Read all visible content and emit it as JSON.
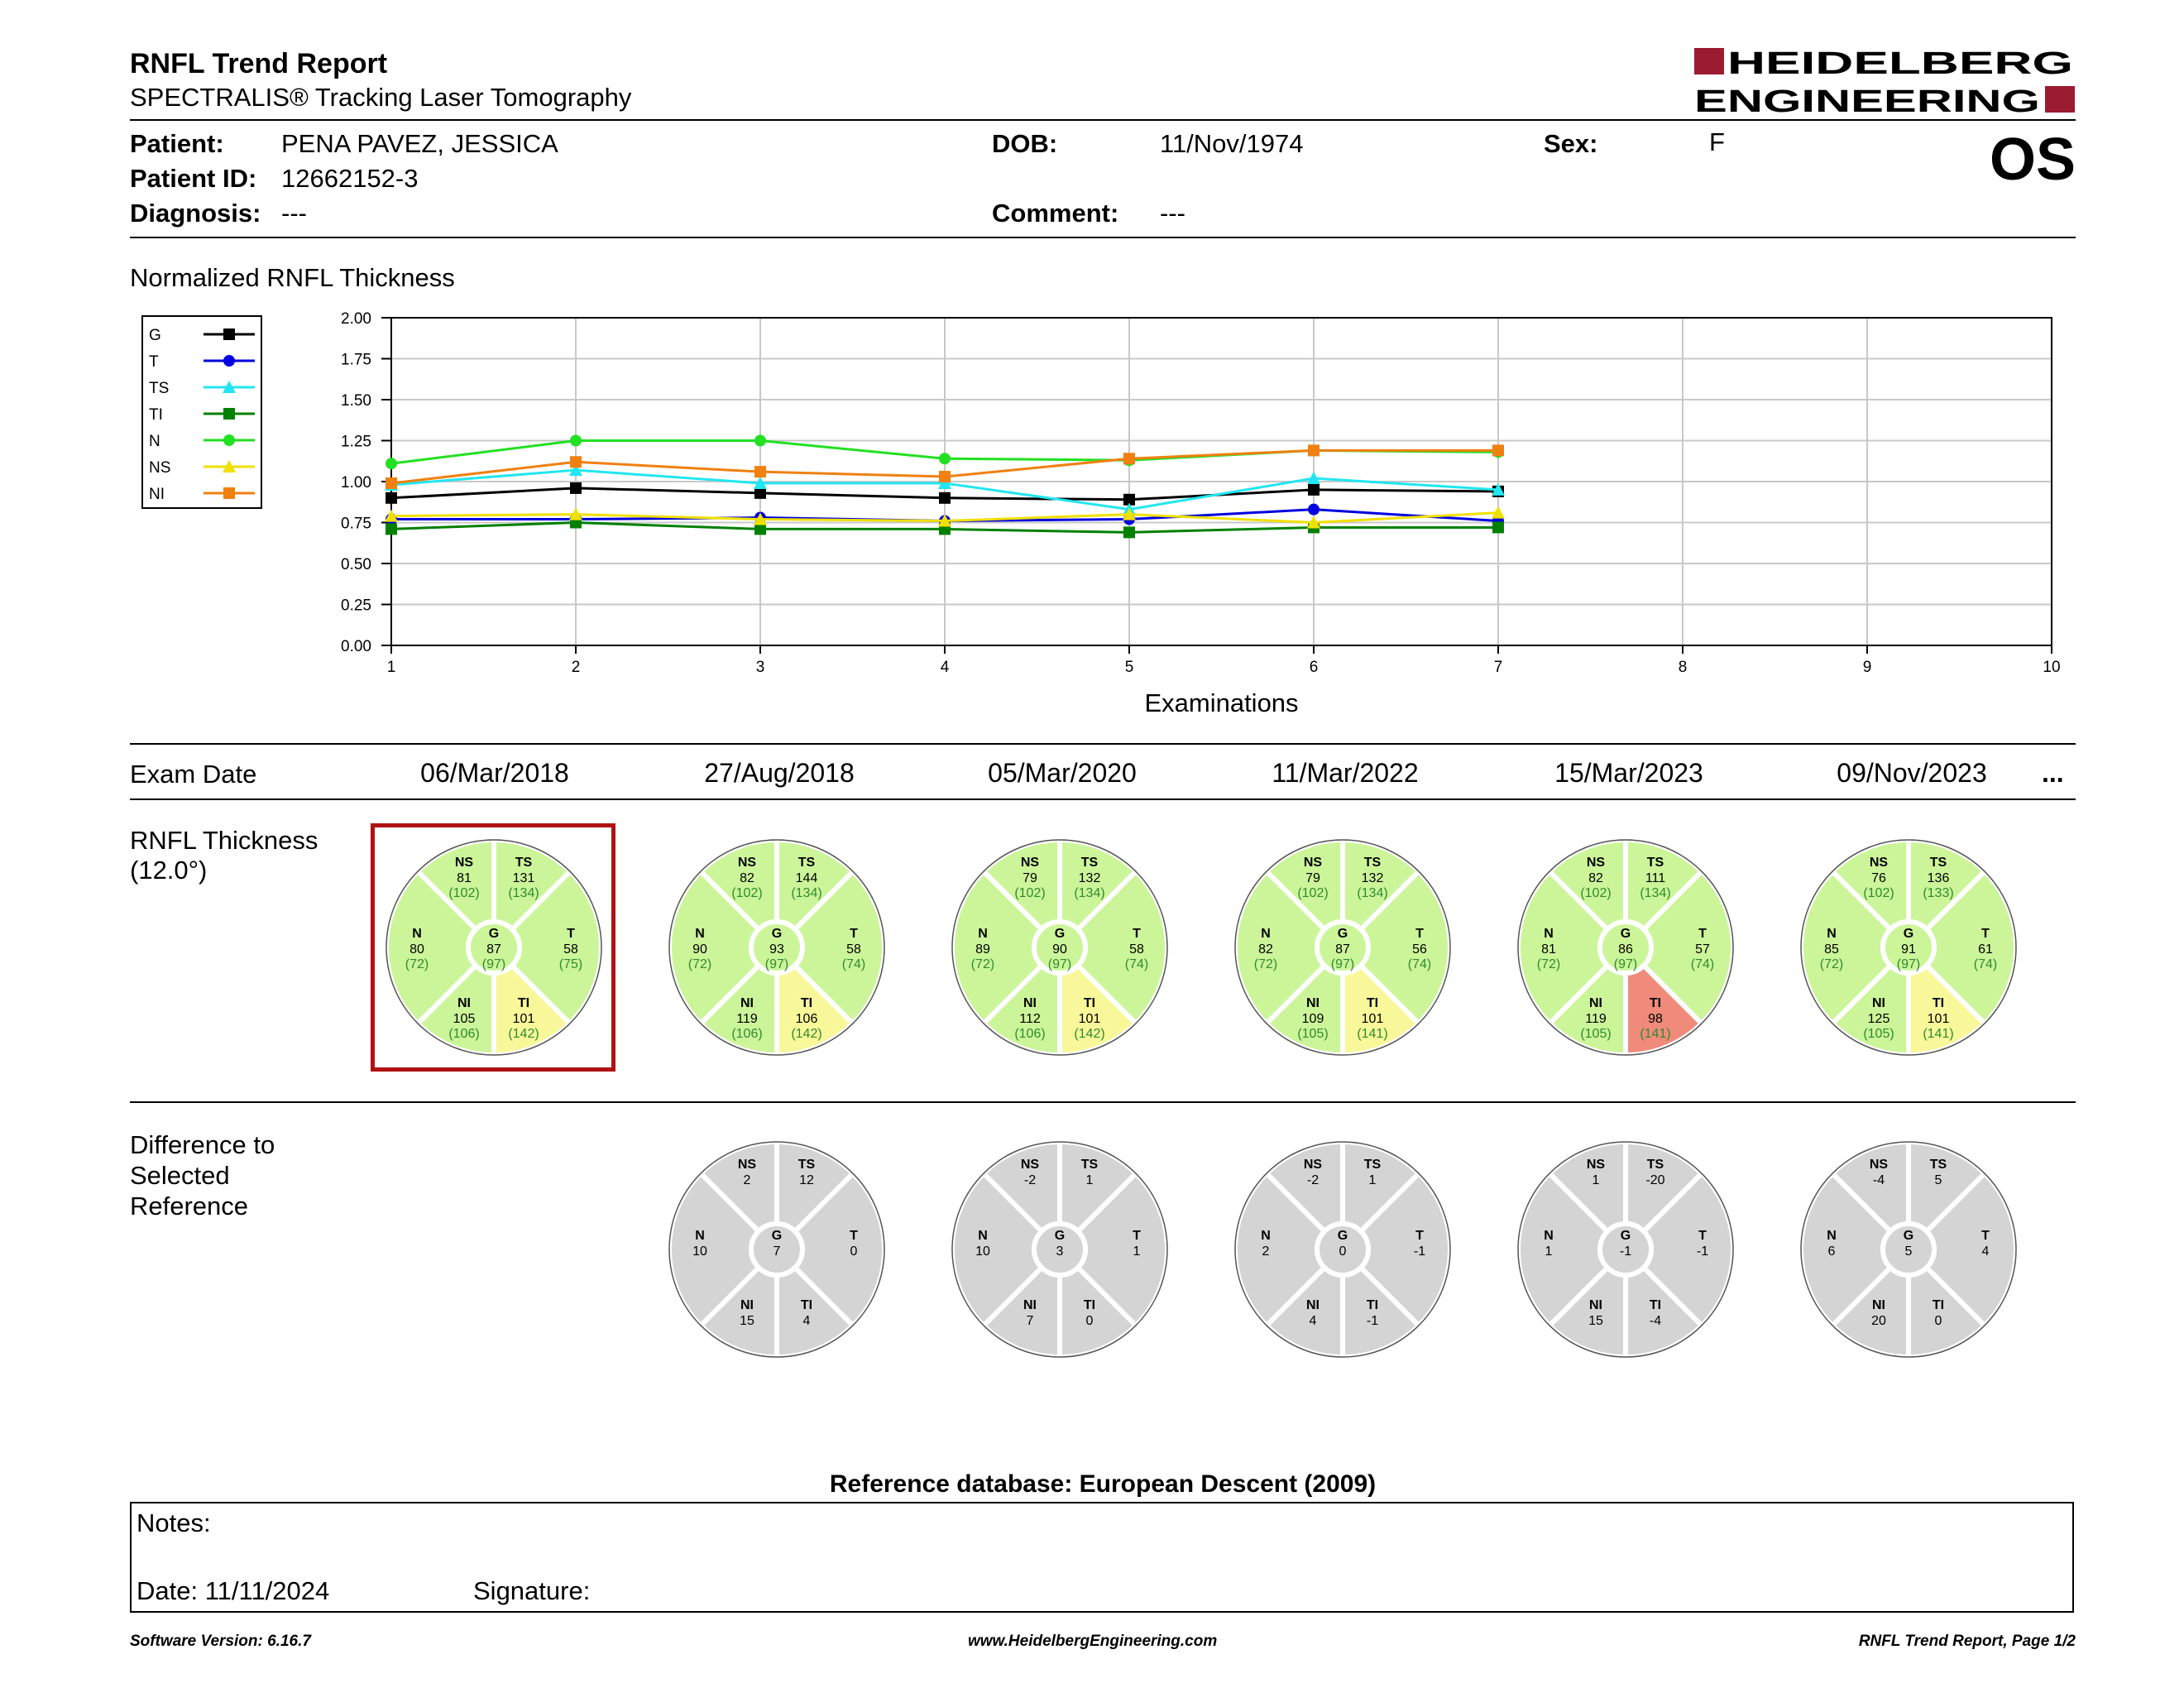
{
  "header": {
    "title": "RNFL Trend Report",
    "subtitle": "SPECTRALIS® Tracking Laser Tomography",
    "brand_line1": "HEIDELBERG",
    "brand_line2": "ENGINEERING",
    "eye": "OS"
  },
  "patient": {
    "patient_label": "Patient:",
    "patient_value": "PENA PAVEZ, JESSICA",
    "id_label": "Patient ID:",
    "id_value": "12662152-3",
    "diagnosis_label": "Diagnosis:",
    "diagnosis_value": "---",
    "dob_label": "DOB:",
    "dob_value": "11/Nov/1974",
    "comment_label": "Comment:",
    "comment_value": "---",
    "sex_label": "Sex:",
    "sex_value": "F"
  },
  "chart_data": {
    "type": "line",
    "title": "Normalized RNFL Thickness",
    "xlabel": "Examinations",
    "ylabel": "",
    "xlim": [
      1,
      10
    ],
    "ylim": [
      0,
      2
    ],
    "x_ticks": [
      "1",
      "2",
      "3",
      "4",
      "5",
      "6",
      "7",
      "8",
      "9",
      "10"
    ],
    "y_ticks": [
      "2.00",
      "1.75",
      "1.50",
      "1.25",
      "1.00",
      "0.75",
      "0.50",
      "0.25",
      "0.00"
    ],
    "grid": true,
    "legend_position": "left",
    "series": [
      {
        "name": "G",
        "color": "#000000",
        "marker": "square",
        "x": [
          1,
          2,
          3,
          4,
          5,
          6,
          7
        ],
        "values": [
          0.9,
          0.96,
          0.93,
          0.9,
          0.89,
          0.95,
          0.94
        ]
      },
      {
        "name": "T",
        "color": "#0000e0",
        "marker": "circle",
        "x": [
          1,
          2,
          3,
          4,
          5,
          6,
          7
        ],
        "values": [
          0.77,
          0.77,
          0.78,
          0.76,
          0.77,
          0.83,
          0.76
        ]
      },
      {
        "name": "TS",
        "color": "#22e6f0",
        "marker": "triangle",
        "x": [
          1,
          2,
          3,
          4,
          5,
          6,
          7
        ],
        "values": [
          0.98,
          1.07,
          0.99,
          0.99,
          0.83,
          1.02,
          0.95
        ]
      },
      {
        "name": "TI",
        "color": "#008000",
        "marker": "square",
        "x": [
          1,
          2,
          3,
          4,
          5,
          6,
          7
        ],
        "values": [
          0.71,
          0.75,
          0.71,
          0.71,
          0.69,
          0.72,
          0.72
        ]
      },
      {
        "name": "N",
        "color": "#22e022",
        "marker": "circle",
        "x": [
          1,
          2,
          3,
          4,
          5,
          6,
          7
        ],
        "values": [
          1.11,
          1.25,
          1.25,
          1.14,
          1.13,
          1.19,
          1.18
        ]
      },
      {
        "name": "NS",
        "color": "#f0e000",
        "marker": "triangle",
        "x": [
          1,
          2,
          3,
          4,
          5,
          6,
          7
        ],
        "values": [
          0.79,
          0.8,
          0.77,
          0.76,
          0.8,
          0.75,
          0.81
        ]
      },
      {
        "name": "NI",
        "color": "#f08010",
        "marker": "square",
        "x": [
          1,
          2,
          3,
          4,
          5,
          6,
          7
        ],
        "values": [
          0.99,
          1.12,
          1.06,
          1.03,
          1.14,
          1.19,
          1.19
        ]
      }
    ]
  },
  "exams": {
    "label": "Exam Date",
    "more": "...",
    "dates": [
      "06/Mar/2018",
      "27/Aug/2018",
      "05/Mar/2020",
      "11/Mar/2022",
      "15/Mar/2023",
      "09/Nov/2023"
    ]
  },
  "thickness": {
    "label_line1": "RNFL Thickness",
    "label_line2": "(12.0°)",
    "discs": [
      {
        "NS": [
          "81",
          "(102)"
        ],
        "TS": [
          "131",
          "(134)"
        ],
        "N": [
          "80",
          "(72)"
        ],
        "G": [
          "87",
          "(97)"
        ],
        "T": [
          "58",
          "(75)"
        ],
        "NI": [
          "105",
          "(106)"
        ],
        "TI": [
          "101",
          "(142)"
        ],
        "status": {
          "TI": "borderline"
        }
      },
      {
        "NS": [
          "82",
          "(102)"
        ],
        "TS": [
          "144",
          "(134)"
        ],
        "N": [
          "90",
          "(72)"
        ],
        "G": [
          "93",
          "(97)"
        ],
        "T": [
          "58",
          "(74)"
        ],
        "NI": [
          "119",
          "(106)"
        ],
        "TI": [
          "106",
          "(142)"
        ],
        "status": {
          "TI": "borderline"
        }
      },
      {
        "NS": [
          "79",
          "(102)"
        ],
        "TS": [
          "132",
          "(134)"
        ],
        "N": [
          "89",
          "(72)"
        ],
        "G": [
          "90",
          "(97)"
        ],
        "T": [
          "58",
          "(74)"
        ],
        "NI": [
          "112",
          "(106)"
        ],
        "TI": [
          "101",
          "(142)"
        ],
        "status": {
          "TI": "borderline"
        }
      },
      {
        "NS": [
          "79",
          "(102)"
        ],
        "TS": [
          "132",
          "(134)"
        ],
        "N": [
          "82",
          "(72)"
        ],
        "G": [
          "87",
          "(97)"
        ],
        "T": [
          "56",
          "(74)"
        ],
        "NI": [
          "109",
          "(105)"
        ],
        "TI": [
          "101",
          "(141)"
        ],
        "status": {
          "TI": "borderline"
        }
      },
      {
        "NS": [
          "82",
          "(102)"
        ],
        "TS": [
          "111",
          "(134)"
        ],
        "N": [
          "81",
          "(72)"
        ],
        "G": [
          "86",
          "(97)"
        ],
        "T": [
          "57",
          "(74)"
        ],
        "NI": [
          "119",
          "(105)"
        ],
        "TI": [
          "98",
          "(141)"
        ],
        "status": {
          "TI": "outside"
        }
      },
      {
        "NS": [
          "76",
          "(102)"
        ],
        "TS": [
          "136",
          "(133)"
        ],
        "N": [
          "85",
          "(72)"
        ],
        "G": [
          "91",
          "(97)"
        ],
        "T": [
          "61",
          "(74)"
        ],
        "NI": [
          "125",
          "(105)"
        ],
        "TI": [
          "101",
          "(141)"
        ],
        "status": {
          "TI": "borderline"
        }
      }
    ]
  },
  "difference": {
    "label_line1": "Difference to",
    "label_line2": "Selected",
    "label_line3": "Reference",
    "discs": [
      {
        "NS": "2",
        "TS": "12",
        "N": "10",
        "G": "7",
        "T": "0",
        "NI": "15",
        "TI": "4"
      },
      {
        "NS": "-2",
        "TS": "1",
        "N": "10",
        "G": "3",
        "T": "1",
        "NI": "7",
        "TI": "0"
      },
      {
        "NS": "-2",
        "TS": "1",
        "N": "2",
        "G": "0",
        "T": "-1",
        "NI": "4",
        "TI": "-1"
      },
      {
        "NS": "1",
        "TS": "-20",
        "N": "1",
        "G": "-1",
        "T": "-1",
        "NI": "15",
        "TI": "-4"
      },
      {
        "NS": "-4",
        "TS": "5",
        "N": "6",
        "G": "5",
        "T": "4",
        "NI": "20",
        "TI": "0"
      }
    ]
  },
  "colors": {
    "normal": "#ccf59a",
    "borderline": "#f8f89a",
    "outside": "#f08a7a",
    "diff": "#d4d4d4",
    "selection": "#b01212",
    "brand": "#9b1b30",
    "value_green": "#2e8b2e"
  },
  "reference_db": "Reference database: European Descent (2009)",
  "notes": {
    "label": "Notes:",
    "date_label": "Date: 11/11/2024",
    "signature_label": "Signature:"
  },
  "footer": {
    "version": "Software Version: 6.16.7",
    "website": "www.HeidelbergEngineering.com",
    "page": "RNFL Trend Report, Page 1/2"
  }
}
